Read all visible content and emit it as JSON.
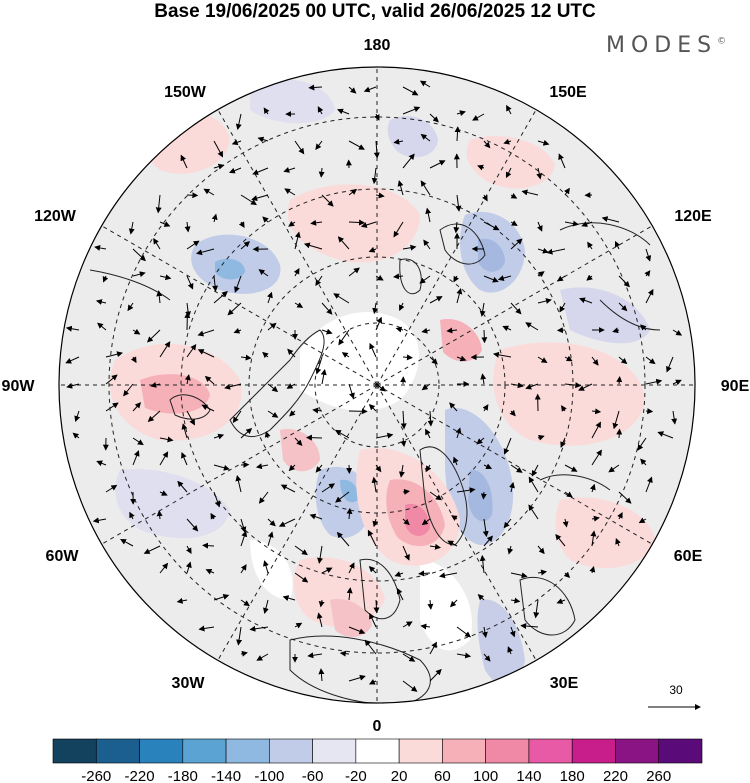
{
  "title": "Base 19/06/2025 00 UTC, valid 26/06/2025 12 UTC",
  "brand": "MODES",
  "brand_mark": "©",
  "map": {
    "projection": "north polar stereographic",
    "longitude_labels": [
      {
        "id": "180",
        "text": "180"
      },
      {
        "id": "150e",
        "text": "150E"
      },
      {
        "id": "120e",
        "text": "120E"
      },
      {
        "id": "90e",
        "text": "90E"
      },
      {
        "id": "60e",
        "text": "60E"
      },
      {
        "id": "30e",
        "text": "30E"
      },
      {
        "id": "0",
        "text": "0"
      },
      {
        "id": "30w",
        "text": "30W"
      },
      {
        "id": "60w",
        "text": "60W"
      },
      {
        "id": "90w",
        "text": "90W"
      },
      {
        "id": "120w",
        "text": "120W"
      },
      {
        "id": "150w",
        "text": "150W"
      }
    ],
    "vector_scale_label": "30"
  },
  "colorbar": {
    "colors": [
      "#13425f",
      "#1a5f90",
      "#2a82bd",
      "#5aa3d3",
      "#8fb9e0",
      "#c1cce8",
      "#e6e5f2",
      "#ffffff",
      "#fbdada",
      "#f5b0b8",
      "#f089a6",
      "#e85aa5",
      "#c71e8c",
      "#8b1485",
      "#5b0a7a"
    ],
    "labels": [
      "-260",
      "-220",
      "-180",
      "-140",
      "-100",
      "-60",
      "-20",
      "20",
      "60",
      "100",
      "140",
      "180",
      "220",
      "260"
    ]
  }
}
